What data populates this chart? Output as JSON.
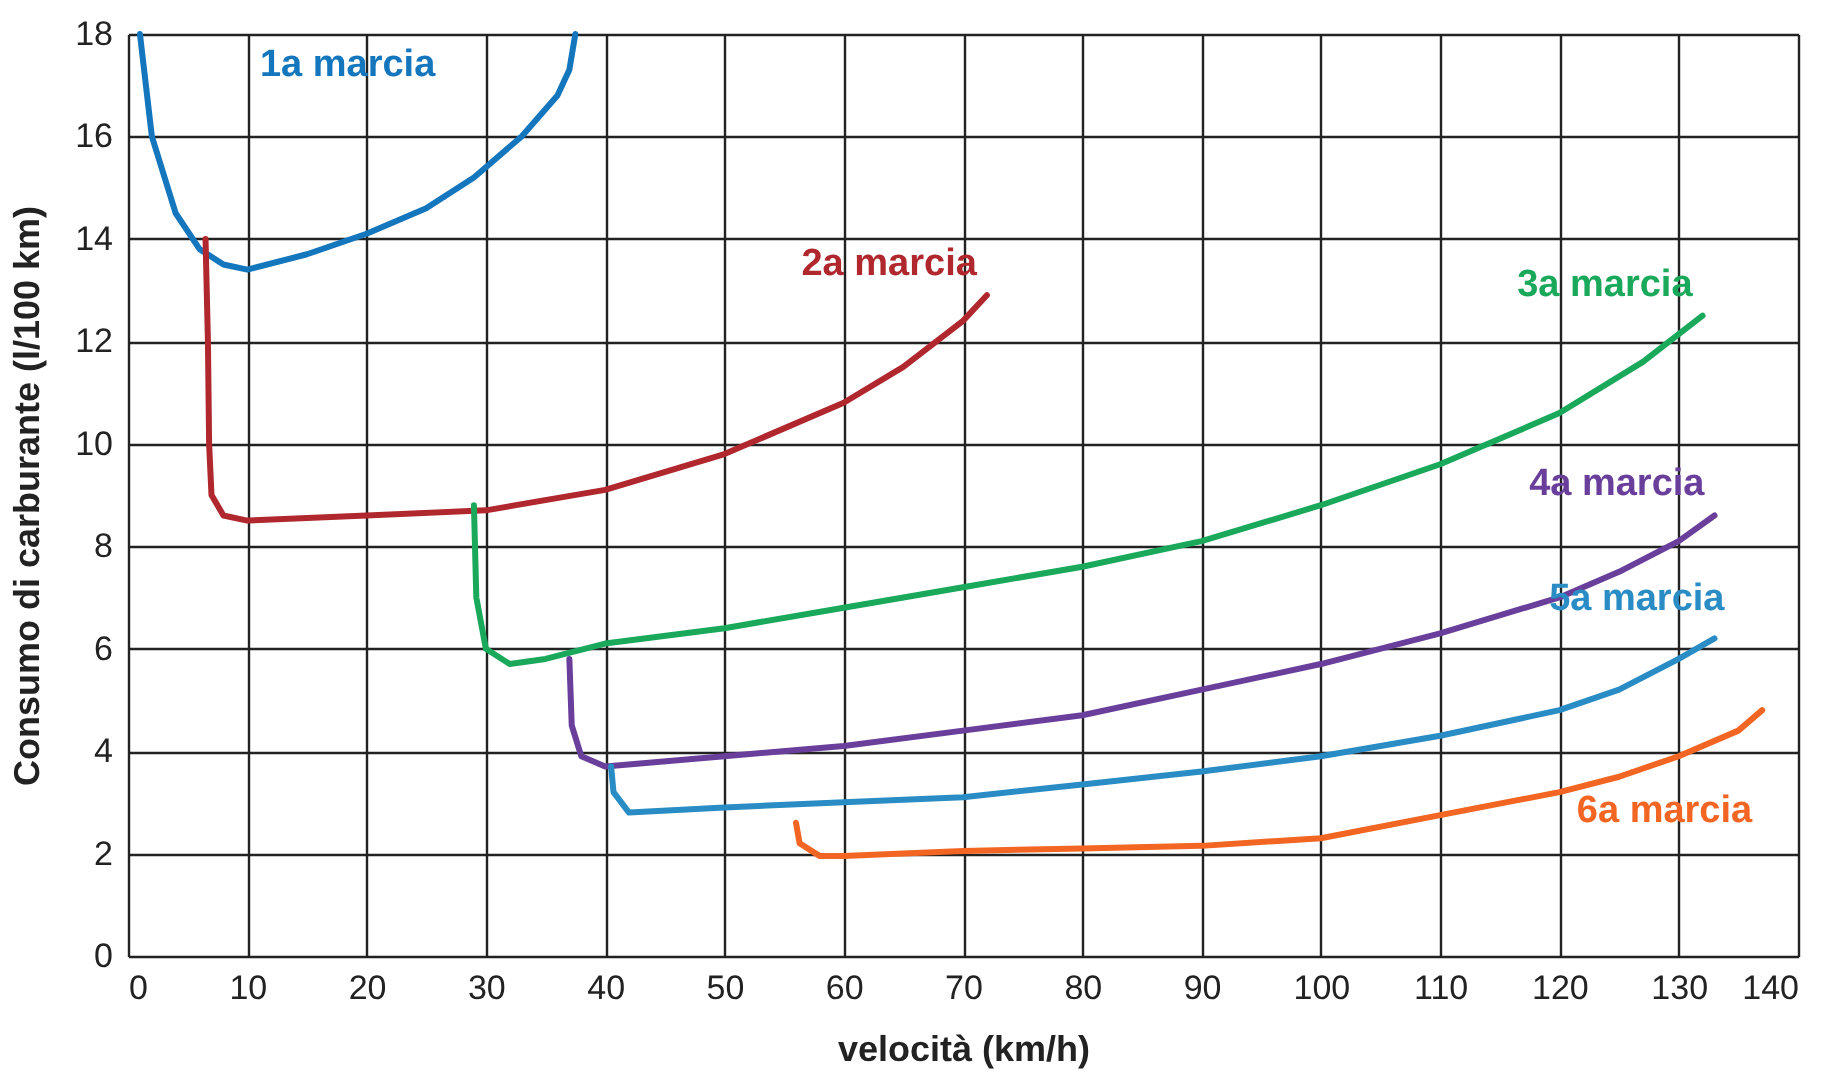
{
  "chart_data": {
    "type": "line",
    "xlabel": "velocità (km/h)",
    "ylabel": "Consumo di carburante (l/100 km)",
    "xlim": [
      0,
      140
    ],
    "ylim": [
      0,
      18
    ],
    "xticks": [
      0,
      10,
      20,
      30,
      40,
      50,
      60,
      70,
      80,
      90,
      100,
      110,
      120,
      130,
      140
    ],
    "yticks": [
      0,
      2,
      4,
      6,
      8,
      10,
      12,
      14,
      16,
      18
    ],
    "grid": true,
    "legend": false,
    "marker": "none",
    "line_style": "solid",
    "series": [
      {
        "name": "1a marcia",
        "color": "#1476bd",
        "x": [
          1,
          2,
          4,
          6,
          8,
          10,
          15,
          20,
          25,
          29,
          33,
          36,
          37,
          37.5
        ],
        "values": [
          18,
          16,
          14.5,
          13.8,
          13.5,
          13.4,
          13.7,
          14.1,
          14.6,
          15.2,
          16,
          16.8,
          17.3,
          18
        ]
      },
      {
        "name": "2a marcia",
        "color": "#b0282d",
        "x": [
          6.5,
          6.7,
          6.8,
          7,
          8,
          10,
          20,
          30,
          40,
          50,
          60,
          65,
          70,
          72
        ],
        "values": [
          14,
          12,
          10,
          9,
          8.6,
          8.5,
          8.6,
          8.7,
          9.1,
          9.8,
          10.8,
          11.5,
          12.4,
          12.9
        ]
      },
      {
        "name": "3a marcia",
        "color": "#1aa85a",
        "x": [
          29,
          29.2,
          30,
          32,
          35,
          40,
          50,
          60,
          70,
          80,
          90,
          100,
          110,
          120,
          127,
          132
        ],
        "values": [
          8.8,
          7,
          6,
          5.7,
          5.8,
          6.1,
          6.4,
          6.8,
          7.2,
          7.6,
          8.1,
          8.8,
          9.6,
          10.6,
          11.6,
          12.5
        ]
      },
      {
        "name": "4a marcia",
        "color": "#6a3f9c",
        "x": [
          37,
          37.2,
          38,
          40,
          50,
          60,
          70,
          80,
          90,
          100,
          110,
          120,
          125,
          130,
          133
        ],
        "values": [
          5.8,
          4.5,
          3.9,
          3.7,
          3.9,
          4.1,
          4.4,
          4.7,
          5.2,
          5.7,
          6.3,
          7,
          7.5,
          8.1,
          8.6
        ]
      },
      {
        "name": "5a marcia",
        "color": "#2a8cc4",
        "x": [
          40.5,
          40.7,
          42,
          50,
          60,
          70,
          80,
          90,
          100,
          110,
          120,
          125,
          130,
          133
        ],
        "values": [
          3.7,
          3.2,
          2.8,
          2.9,
          3,
          3.1,
          3.35,
          3.6,
          3.9,
          4.3,
          4.8,
          5.2,
          5.8,
          6.2
        ]
      },
      {
        "name": "6a marcia",
        "color": "#f26522",
        "x": [
          56,
          56.3,
          58,
          60,
          70,
          80,
          90,
          100,
          110,
          120,
          125,
          130,
          135,
          137
        ],
        "values": [
          2.6,
          2.2,
          1.95,
          1.95,
          2.05,
          2.1,
          2.15,
          2.3,
          2.75,
          3.2,
          3.5,
          3.9,
          4.4,
          4.8
        ]
      }
    ]
  }
}
